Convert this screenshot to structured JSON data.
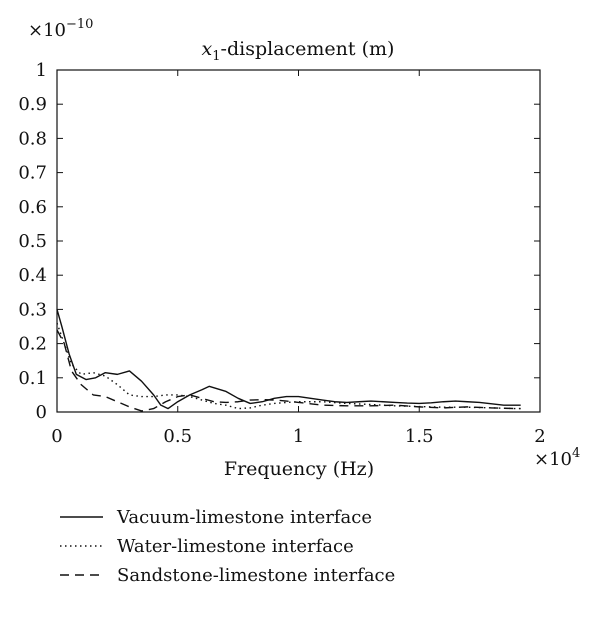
{
  "chart_data": {
    "type": "line",
    "title_math": "x",
    "title_sub": "1",
    "title_text": "-displacement (m)",
    "xlabel": "Frequency (Hz)",
    "ylabel": "",
    "x_exponent_base": "×10",
    "x_exponent_power": "4",
    "y_exponent_base": "×10",
    "y_exponent_power": "−10",
    "xlim": [
      0,
      2
    ],
    "ylim": [
      0,
      1
    ],
    "xticks": [
      0,
      0.5,
      1,
      1.5,
      2
    ],
    "xtick_labels": [
      "0",
      "0.5",
      "1",
      "1.5",
      "2"
    ],
    "yticks": [
      0,
      0.1,
      0.2,
      0.3,
      0.4,
      0.5,
      0.6,
      0.7,
      0.8,
      0.9,
      1
    ],
    "ytick_labels": [
      "0",
      "0.1",
      "0.2",
      "0.3",
      "0.4",
      "0.5",
      "0.6",
      "0.7",
      "0.8",
      "0.9",
      "1"
    ],
    "grid": false,
    "legend_position": "bottom",
    "series": [
      {
        "name": "Vacuum-limestone interface",
        "style": "solid",
        "x": [
          0.0,
          0.02,
          0.05,
          0.08,
          0.12,
          0.16,
          0.2,
          0.25,
          0.3,
          0.35,
          0.4,
          0.43,
          0.46,
          0.5,
          0.55,
          0.6,
          0.63,
          0.7,
          0.75,
          0.8,
          0.85,
          0.9,
          0.95,
          1.0,
          1.05,
          1.1,
          1.15,
          1.2,
          1.25,
          1.3,
          1.35,
          1.4,
          1.45,
          1.5,
          1.55,
          1.6,
          1.65,
          1.7,
          1.75,
          1.8,
          1.85,
          1.9,
          1.92
        ],
        "y": [
          0.3,
          0.25,
          0.17,
          0.11,
          0.095,
          0.1,
          0.115,
          0.11,
          0.12,
          0.09,
          0.05,
          0.02,
          0.01,
          0.03,
          0.05,
          0.065,
          0.075,
          0.06,
          0.04,
          0.025,
          0.03,
          0.04,
          0.045,
          0.045,
          0.04,
          0.035,
          0.03,
          0.028,
          0.03,
          0.032,
          0.03,
          0.028,
          0.026,
          0.025,
          0.027,
          0.03,
          0.032,
          0.03,
          0.028,
          0.024,
          0.02,
          0.02,
          0.02
        ]
      },
      {
        "name": "Water-limestone interface",
        "style": "dotted",
        "x": [
          0.0,
          0.03,
          0.06,
          0.1,
          0.15,
          0.2,
          0.25,
          0.3,
          0.35,
          0.4,
          0.45,
          0.5,
          0.55,
          0.6,
          0.65,
          0.7,
          0.75,
          0.8,
          0.85,
          0.9,
          0.95,
          1.0,
          1.1,
          1.2,
          1.3,
          1.4,
          1.5,
          1.6,
          1.7,
          1.8,
          1.9,
          1.92
        ],
        "y": [
          0.26,
          0.2,
          0.14,
          0.11,
          0.115,
          0.105,
          0.08,
          0.05,
          0.045,
          0.045,
          0.05,
          0.05,
          0.045,
          0.035,
          0.025,
          0.02,
          0.01,
          0.012,
          0.02,
          0.025,
          0.028,
          0.03,
          0.03,
          0.025,
          0.022,
          0.018,
          0.016,
          0.014,
          0.014,
          0.012,
          0.01,
          0.01
        ]
      },
      {
        "name": "Sandstone-limestone interface",
        "style": "dashed",
        "x": [
          0.0,
          0.03,
          0.06,
          0.1,
          0.15,
          0.2,
          0.25,
          0.3,
          0.35,
          0.4,
          0.45,
          0.5,
          0.55,
          0.6,
          0.65,
          0.7,
          0.75,
          0.8,
          0.85,
          0.9,
          0.95,
          1.0,
          1.05,
          1.1,
          1.2,
          1.3,
          1.4,
          1.5,
          1.6,
          1.7,
          1.8,
          1.9,
          1.92
        ],
        "y": [
          0.24,
          0.2,
          0.12,
          0.08,
          0.05,
          0.045,
          0.03,
          0.015,
          0.003,
          0.01,
          0.03,
          0.045,
          0.05,
          0.04,
          0.03,
          0.028,
          0.03,
          0.035,
          0.036,
          0.035,
          0.032,
          0.028,
          0.024,
          0.02,
          0.018,
          0.018,
          0.02,
          0.015,
          0.012,
          0.015,
          0.012,
          0.01,
          0.01
        ]
      }
    ]
  }
}
